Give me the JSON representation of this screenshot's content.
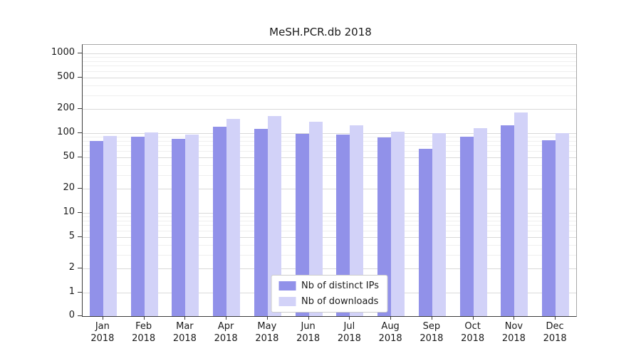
{
  "title": "MeSH.PCR.db 2018",
  "chart_data": {
    "type": "bar",
    "title": "MeSH.PCR.db 2018",
    "categories": [
      "Jan",
      "Feb",
      "Mar",
      "Apr",
      "May",
      "Jun",
      "Jul",
      "Aug",
      "Sep",
      "Oct",
      "Nov",
      "Dec"
    ],
    "year": "2018",
    "series": [
      {
        "name": "Nb of distinct IPs",
        "color": "#9191e9",
        "values": [
          80,
          90,
          85,
          120,
          112,
          97,
          95,
          88,
          63,
          90,
          125,
          82
        ]
      },
      {
        "name": "Nb of downloads",
        "color": "#d2d2f8",
        "values": [
          93,
          102,
          95,
          150,
          165,
          140,
          125,
          105,
          100,
          115,
          180,
          100
        ]
      }
    ],
    "xlabel": "",
    "ylabel": "",
    "yscale": "symlog",
    "yticks": [
      0,
      1,
      2,
      5,
      10,
      20,
      50,
      100,
      200,
      500,
      1000
    ],
    "ylim": [
      0,
      1200
    ],
    "grid": true,
    "legend_position": "lower center"
  }
}
